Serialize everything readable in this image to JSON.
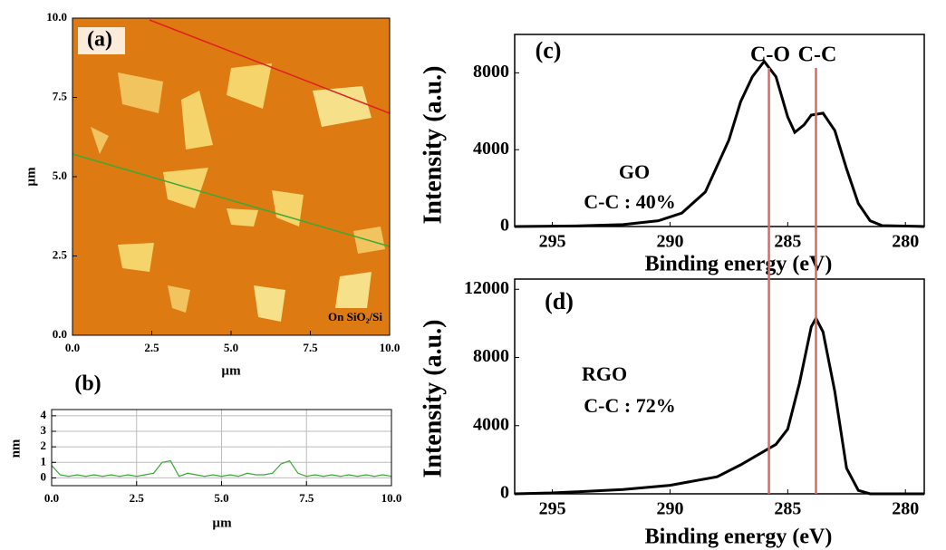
{
  "chart_data": [
    {
      "type": "image",
      "title": "(a)",
      "xlabel": "µm",
      "ylabel": "µm",
      "annotation": "On SiO₂/Si",
      "xlim": [
        0,
        10
      ],
      "ylim": [
        0,
        10
      ],
      "xticks": [
        {
          "value": 0,
          "label": "0.0"
        },
        2.5,
        {
          "value": 5,
          "label": "5.0"
        },
        7.5,
        {
          "value": 10,
          "label": "10.0"
        }
      ],
      "yticks": [
        {
          "value": 0,
          "label": "0.0"
        },
        2.5,
        {
          "value": 5,
          "label": "5.0"
        },
        7.5,
        {
          "value": 10,
          "label": "10.0"
        }
      ]
    },
    {
      "type": "line",
      "title": "(b)",
      "xlabel": "µm",
      "ylabel": "nm",
      "color": "#3aaa35",
      "grid": true,
      "x": [
        0,
        0.25,
        0.5,
        0.75,
        1,
        1.25,
        1.5,
        1.75,
        2,
        2.25,
        2.5,
        2.75,
        3,
        3.25,
        3.5,
        3.75,
        4,
        4.25,
        4.5,
        4.75,
        5,
        5.25,
        5.5,
        5.75,
        6,
        6.25,
        6.5,
        6.75,
        7,
        7.25,
        7.5,
        7.75,
        8,
        8.25,
        8.5,
        8.75,
        9,
        9.25,
        9.5,
        9.75,
        10
      ],
      "values": [
        0.8,
        0.2,
        0.1,
        0.2,
        0.1,
        0.2,
        0.1,
        0.2,
        0.1,
        0.2,
        0.1,
        0.2,
        0.3,
        1,
        1.1,
        0.1,
        0.3,
        0.2,
        0.1,
        0.2,
        0.1,
        0.2,
        0.1,
        0.3,
        0.2,
        0.2,
        0.3,
        0.9,
        1.1,
        0.3,
        0.1,
        0.2,
        0.1,
        0.2,
        0.1,
        0.2,
        0.1,
        0.2,
        0.1,
        0.2,
        0.1
      ],
      "xlim": [
        0,
        10
      ],
      "ylim": [
        -0.5,
        4.4
      ],
      "xticks": [
        {
          "value": 0,
          "label": "0.0"
        },
        2.5,
        {
          "value": 5,
          "label": "5.0"
        },
        7.5,
        {
          "value": 10,
          "label": "10.0"
        }
      ],
      "yticks": [
        0,
        1,
        2,
        3,
        4
      ]
    },
    {
      "type": "line",
      "title": "(c)",
      "xlabel": "Binding energy (eV)",
      "ylabel": "Intensity (a.u.)",
      "color": "#000000",
      "annotations": [
        "C-O",
        "C-C",
        "GO",
        "C-C : 40%"
      ],
      "x": [
        296.6,
        294,
        292,
        290.5,
        289.5,
        288.5,
        287.5,
        287,
        286.5,
        286,
        285.5,
        285,
        284.7,
        284.3,
        284,
        283.5,
        283,
        282.5,
        282,
        281.5,
        281,
        279.2
      ],
      "values": [
        0,
        30,
        100,
        300,
        700,
        1800,
        4500,
        6500,
        7800,
        8600,
        7800,
        5700,
        4900,
        5300,
        5800,
        5900,
        5000,
        3000,
        1200,
        300,
        50,
        0
      ],
      "xlim": [
        296.6,
        279.2
      ],
      "ylim": [
        0,
        10000
      ],
      "xticks": [
        295,
        290,
        285,
        280
      ],
      "yticks": [
        0,
        4000,
        8000
      ],
      "vlines": [
        285.8,
        283.8
      ],
      "vline_color": "#e06666"
    },
    {
      "type": "line",
      "title": "(d)",
      "xlabel": "Binding energy (eV)",
      "ylabel": "Intensity (a.u.)",
      "color": "#000000",
      "annotations": [
        "RGO",
        "C-C : 72%"
      ],
      "x": [
        296.6,
        295,
        292,
        290,
        288,
        287,
        286,
        285.5,
        285,
        284.5,
        284,
        283.8,
        283.5,
        283,
        282.5,
        282,
        281.5,
        279.2
      ],
      "values": [
        0,
        50,
        250,
        500,
        1000,
        1700,
        2500,
        2900,
        3800,
        6500,
        9800,
        10300,
        9500,
        6000,
        1500,
        200,
        0,
        0
      ],
      "xlim": [
        296.6,
        279.2
      ],
      "ylim": [
        0,
        12600
      ],
      "xticks": [
        295,
        290,
        285,
        280
      ],
      "yticks": [
        0,
        4000,
        8000,
        12000
      ]
    }
  ]
}
